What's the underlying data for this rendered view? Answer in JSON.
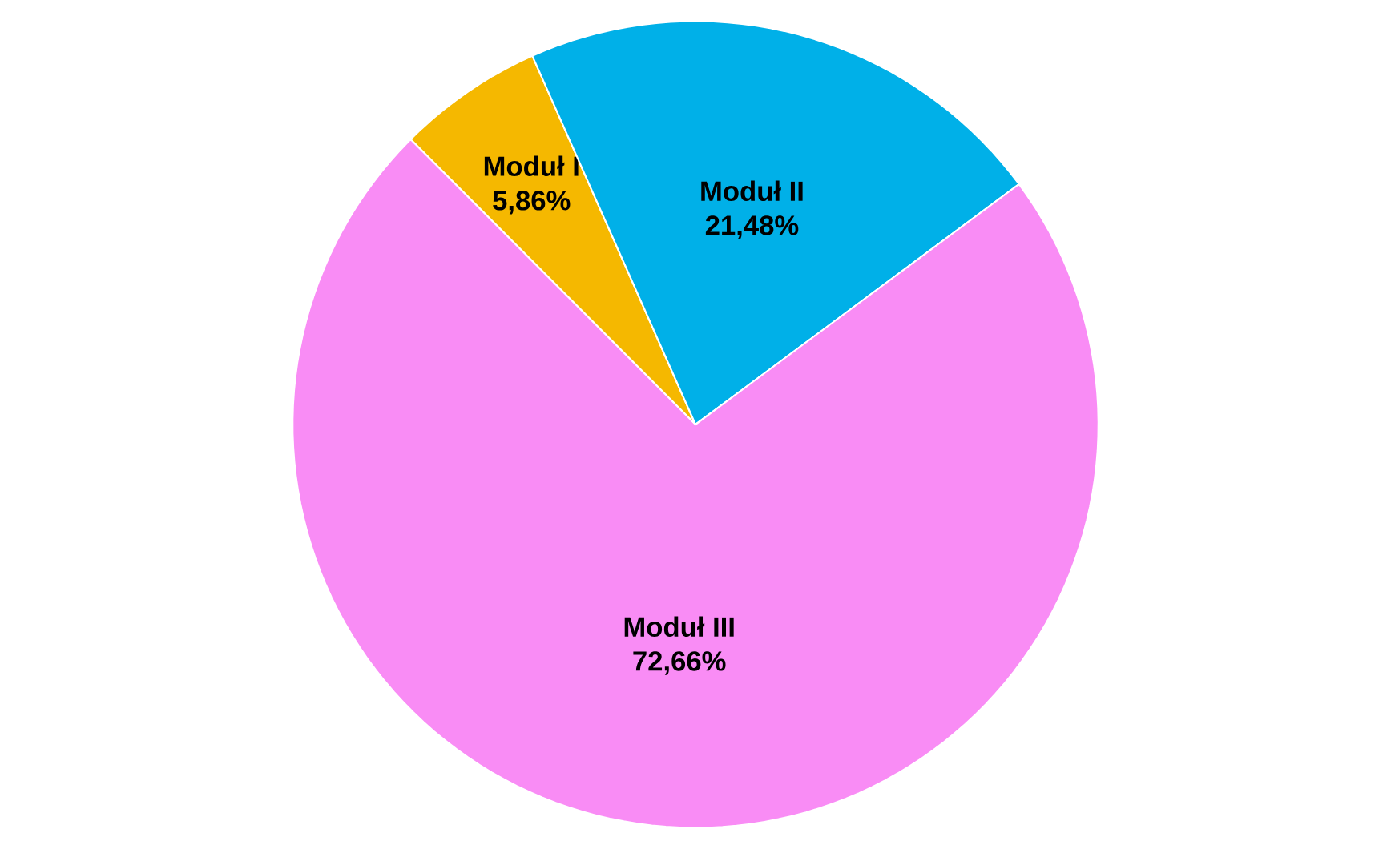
{
  "chart_data": {
    "type": "pie",
    "categories": [
      "Moduł I",
      "Moduł II",
      "Moduł III"
    ],
    "values": [
      5.86,
      21.48,
      72.66
    ],
    "value_labels": [
      "5,86%",
      "21,48%",
      "72,66%"
    ],
    "colors": [
      "#f5b800",
      "#00b0e8",
      "#f98cf5"
    ]
  }
}
